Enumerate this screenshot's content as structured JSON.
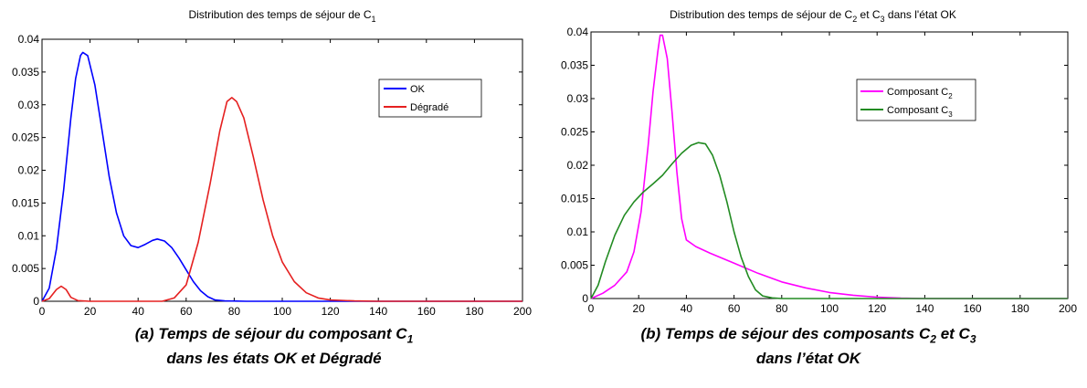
{
  "chart_data": [
    {
      "type": "line",
      "title": "Distribution des temps de séjour de C",
      "title_subscript": "1",
      "xlim": [
        0,
        200
      ],
      "ylim": [
        0,
        0.04
      ],
      "xticks": [
        "0",
        "20",
        "40",
        "60",
        "80",
        "100",
        "120",
        "140",
        "160",
        "180",
        "200"
      ],
      "yticks": [
        "0",
        "0.005",
        "0.01",
        "0.015",
        "0.02",
        "0.025",
        "0.03",
        "0.035",
        "0.04"
      ],
      "legend_position": "top-right",
      "grid": false,
      "series": [
        {
          "name": "OK",
          "color": "#0000ff",
          "points": [
            [
              0,
              0
            ],
            [
              3,
              0.002
            ],
            [
              6,
              0.008
            ],
            [
              9,
              0.017
            ],
            [
              12,
              0.028
            ],
            [
              14,
              0.034
            ],
            [
              16,
              0.0375
            ],
            [
              17,
              0.038
            ],
            [
              19,
              0.0375
            ],
            [
              22,
              0.033
            ],
            [
              25,
              0.026
            ],
            [
              28,
              0.019
            ],
            [
              31,
              0.0135
            ],
            [
              34,
              0.01
            ],
            [
              37,
              0.0085
            ],
            [
              40,
              0.0082
            ],
            [
              43,
              0.0087
            ],
            [
              46,
              0.0093
            ],
            [
              48,
              0.0095
            ],
            [
              51,
              0.0092
            ],
            [
              54,
              0.0082
            ],
            [
              57,
              0.0066
            ],
            [
              60,
              0.0048
            ],
            [
              63,
              0.003
            ],
            [
              66,
              0.0016
            ],
            [
              69,
              0.0007
            ],
            [
              72,
              0.0002
            ],
            [
              76,
              5e-05
            ],
            [
              85,
              0
            ],
            [
              100,
              0
            ],
            [
              200,
              0
            ]
          ]
        },
        {
          "name": "Dégradé",
          "color": "#e52020",
          "points": [
            [
              0,
              0
            ],
            [
              3,
              0.0004
            ],
            [
              6,
              0.0018
            ],
            [
              8,
              0.0023
            ],
            [
              10,
              0.0018
            ],
            [
              12,
              0.0006
            ],
            [
              15,
              0.0001
            ],
            [
              20,
              0
            ],
            [
              50,
              0
            ],
            [
              55,
              0.0005
            ],
            [
              60,
              0.0025
            ],
            [
              65,
              0.009
            ],
            [
              70,
              0.018
            ],
            [
              74,
              0.026
            ],
            [
              77,
              0.0305
            ],
            [
              79,
              0.0311
            ],
            [
              81,
              0.0305
            ],
            [
              84,
              0.028
            ],
            [
              88,
              0.022
            ],
            [
              92,
              0.0155
            ],
            [
              96,
              0.01
            ],
            [
              100,
              0.006
            ],
            [
              105,
              0.003
            ],
            [
              110,
              0.0013
            ],
            [
              115,
              0.0005
            ],
            [
              120,
              0.0002
            ],
            [
              130,
              5e-05
            ],
            [
              140,
              0
            ],
            [
              200,
              0
            ]
          ]
        }
      ]
    },
    {
      "type": "line",
      "title": "Distribution des temps de séjour de C",
      "title_subscript": "2",
      "title_mid": " et C",
      "title_subscript_2": "3",
      "title_end": " dans l'état OK",
      "xlim": [
        0,
        200
      ],
      "ylim": [
        0,
        0.04
      ],
      "xticks": [
        "0",
        "20",
        "40",
        "60",
        "80",
        "100",
        "120",
        "140",
        "160",
        "180",
        "200"
      ],
      "yticks": [
        "0",
        "0.005",
        "0.01",
        "0.015",
        "0.02",
        "0.025",
        "0.03",
        "0.035",
        "0.04"
      ],
      "legend_position": "top-right",
      "grid": false,
      "series": [
        {
          "name": "Composant C",
          "name_subscript": "2",
          "color": "#ff00ff",
          "points": [
            [
              0,
              0
            ],
            [
              5,
              0.0008
            ],
            [
              10,
              0.002
            ],
            [
              15,
              0.004
            ],
            [
              18,
              0.007
            ],
            [
              21,
              0.013
            ],
            [
              24,
              0.023
            ],
            [
              26,
              0.031
            ],
            [
              28,
              0.037
            ],
            [
              29,
              0.0395
            ],
            [
              30,
              0.0395
            ],
            [
              32,
              0.036
            ],
            [
              34,
              0.028
            ],
            [
              36,
              0.019
            ],
            [
              38,
              0.012
            ],
            [
              40,
              0.0088
            ],
            [
              44,
              0.0078
            ],
            [
              50,
              0.0068
            ],
            [
              60,
              0.0053
            ],
            [
              70,
              0.0038
            ],
            [
              80,
              0.0025
            ],
            [
              90,
              0.0016
            ],
            [
              100,
              0.0009
            ],
            [
              110,
              0.0005
            ],
            [
              120,
              0.0002
            ],
            [
              130,
              5e-05
            ],
            [
              140,
              0
            ],
            [
              200,
              0
            ]
          ]
        },
        {
          "name": "Composant C",
          "name_subscript": "3",
          "color": "#228b22",
          "points": [
            [
              0,
              0
            ],
            [
              3,
              0.002
            ],
            [
              6,
              0.0055
            ],
            [
              10,
              0.0095
            ],
            [
              14,
              0.0125
            ],
            [
              18,
              0.0145
            ],
            [
              22,
              0.016
            ],
            [
              26,
              0.0172
            ],
            [
              30,
              0.0185
            ],
            [
              34,
              0.0202
            ],
            [
              38,
              0.0218
            ],
            [
              42,
              0.023
            ],
            [
              45,
              0.0234
            ],
            [
              48,
              0.0232
            ],
            [
              51,
              0.0215
            ],
            [
              54,
              0.0185
            ],
            [
              57,
              0.0145
            ],
            [
              60,
              0.01
            ],
            [
              63,
              0.0062
            ],
            [
              66,
              0.0033
            ],
            [
              69,
              0.0013
            ],
            [
              72,
              0.0004
            ],
            [
              76,
              0.0001
            ],
            [
              80,
              0
            ],
            [
              200,
              0
            ]
          ]
        }
      ]
    }
  ],
  "captions": {
    "a": {
      "line1_pre": "(a) Temps de séjour du composant C",
      "line1_sub": "1",
      "line2": "dans les états OK et Dégradé"
    },
    "b": {
      "line1_pre": "(b) Temps de séjour des composants C",
      "line1_sub": "2",
      "line1_mid": " et C",
      "line1_sub2": "3",
      "line2": "dans l’état OK"
    }
  }
}
